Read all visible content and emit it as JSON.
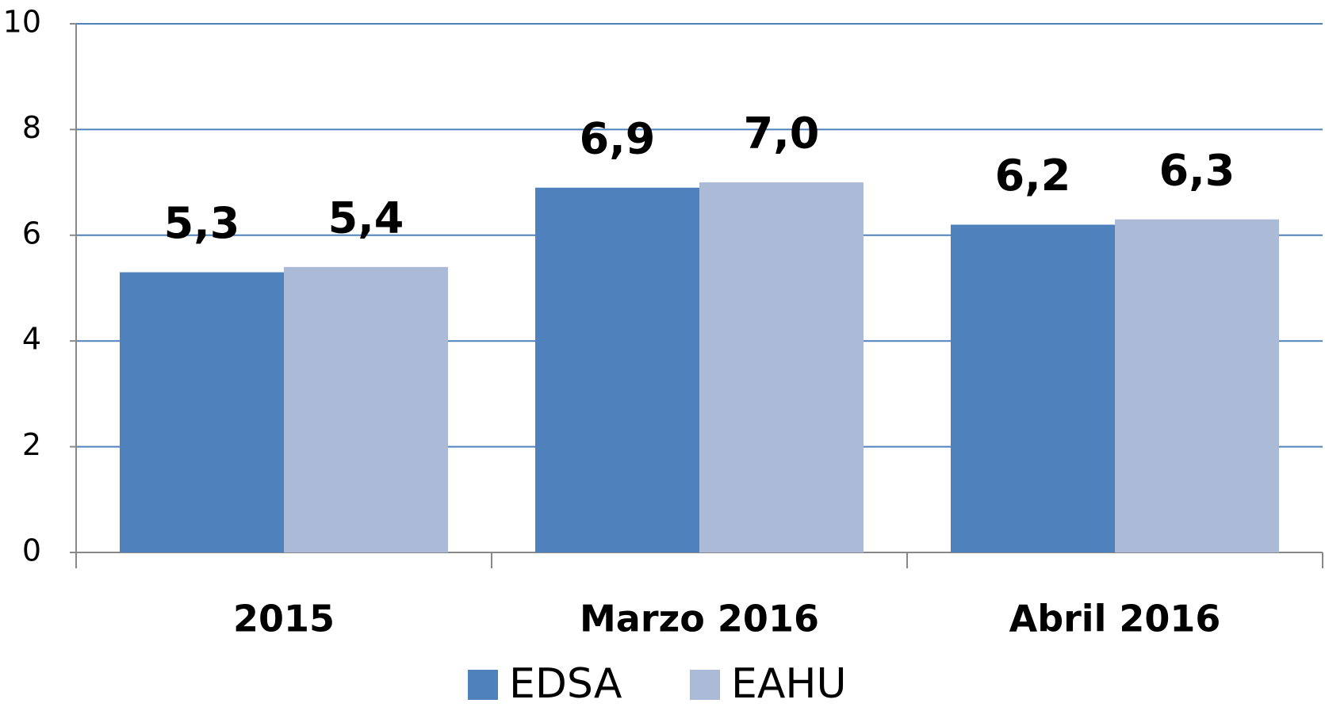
{
  "chart_data": {
    "type": "bar",
    "categories": [
      "2015",
      "Marzo 2016",
      "Abril 2016"
    ],
    "series": [
      {
        "name": "EDSA",
        "color": "#4f81bd",
        "values": [
          5.3,
          6.9,
          6.2
        ],
        "value_labels": [
          "5,3",
          "6,9",
          "6,2"
        ]
      },
      {
        "name": "EAHU",
        "color": "#aabad7",
        "values": [
          5.4,
          7.0,
          6.3
        ],
        "value_labels": [
          "5,4",
          "7,0",
          "6,3"
        ]
      }
    ],
    "ylim": [
      0,
      10
    ],
    "yticks": [
      0,
      2,
      4,
      6,
      8,
      10
    ],
    "grid": true,
    "grid_color": "#4f81bd",
    "legend": "bottom"
  }
}
